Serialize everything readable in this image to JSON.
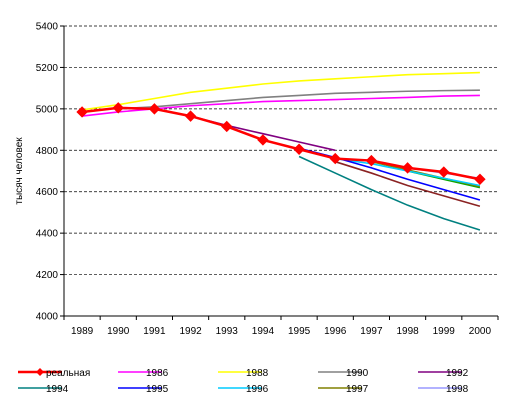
{
  "chart_data": {
    "type": "line",
    "ylabel": "тысяч человек",
    "xlabel": "",
    "ylim": [
      4000,
      5400
    ],
    "yticks": [
      4000,
      4200,
      4400,
      4600,
      4800,
      5000,
      5200,
      5400
    ],
    "grid": "horizontal dashed",
    "legend_position": "bottom",
    "categories": [
      "1989",
      "1990",
      "1991",
      "1992",
      "1993",
      "1994",
      "1995",
      "1996",
      "1997",
      "1998",
      "1999",
      "2000"
    ],
    "series": [
      {
        "name": "реальная",
        "color": "#ff0000",
        "marker": "diamond",
        "x": [
          1989,
          1990,
          1991,
          1992,
          1993,
          1994,
          1995,
          1996,
          1997,
          1998,
          1999,
          2000
        ],
        "values": [
          4985,
          5005,
          5000,
          4965,
          4915,
          4850,
          4805,
          4760,
          4750,
          4715,
          4695,
          4660
        ]
      },
      {
        "name": "1986",
        "color": "#ff00ff",
        "x": [
          1989,
          1990,
          1991,
          1992,
          1993,
          1994,
          1995,
          1996,
          1997,
          1998,
          1999,
          2000
        ],
        "values": [
          4965,
          4985,
          5000,
          5015,
          5025,
          5035,
          5040,
          5045,
          5050,
          5055,
          5062,
          5065
        ]
      },
      {
        "name": "1988",
        "color": "#ffff00",
        "x": [
          1989,
          1990,
          1991,
          1992,
          1993,
          1994,
          1995,
          1996,
          1997,
          1998,
          1999,
          2000
        ],
        "values": [
          4995,
          5020,
          5050,
          5080,
          5100,
          5120,
          5135,
          5145,
          5155,
          5165,
          5170,
          5175
        ]
      },
      {
        "name": "1990",
        "color": "#808080",
        "x": [
          1990,
          1991,
          1992,
          1993,
          1994,
          1995,
          1996,
          1997,
          1998,
          1999,
          2000
        ],
        "values": [
          5000,
          5010,
          5025,
          5040,
          5055,
          5065,
          5075,
          5080,
          5085,
          5088,
          5090
        ]
      },
      {
        "name": "1992",
        "color": "#800080",
        "x": [
          1992,
          1993,
          1994,
          1995,
          1996
        ],
        "values": [
          4965,
          4920,
          4880,
          4840,
          4800
        ]
      },
      {
        "name": "1994",
        "color": "#008080",
        "x": [
          1995,
          1996,
          1997,
          1998,
          1999,
          2000
        ],
        "values": [
          4770,
          4690,
          4610,
          4535,
          4470,
          4415
        ]
      },
      {
        "name": "1995",
        "color": "#0000ff",
        "x": [
          1995,
          1996,
          1997,
          1998,
          1999,
          2000
        ],
        "values": [
          4810,
          4765,
          4715,
          4660,
          4610,
          4560
        ]
      },
      {
        "name": "1996",
        "color": "#00ccff",
        "x": [
          1996,
          1997,
          1998,
          1999,
          2000
        ],
        "values": [
          4760,
          4735,
          4700,
          4665,
          4630
        ]
      },
      {
        "name": "1997",
        "color": "#808000",
        "x": [
          1997,
          1998,
          1999,
          2000
        ],
        "values": [
          4745,
          4705,
          4665,
          4625
        ]
      },
      {
        "name": "1998",
        "color": "#9999ff",
        "x": [
          1998,
          1999,
          2000
        ],
        "values": [
          4715,
          4690,
          4665
        ]
      },
      {
        "name": "",
        "color": "#00aa00",
        "x": [
          1998,
          1999,
          2000
        ],
        "values": [
          4700,
          4660,
          4620
        ]
      },
      {
        "name": "",
        "color": "#8b2323",
        "x": [
          1996,
          1997,
          1998,
          1999,
          2000
        ],
        "values": [
          4745,
          4690,
          4630,
          4580,
          4530
        ]
      }
    ],
    "legend_order": [
      "реальная",
      "1986",
      "1988",
      "1990",
      "1992",
      "1994",
      "1995",
      "1996",
      "1997",
      "1998"
    ]
  }
}
